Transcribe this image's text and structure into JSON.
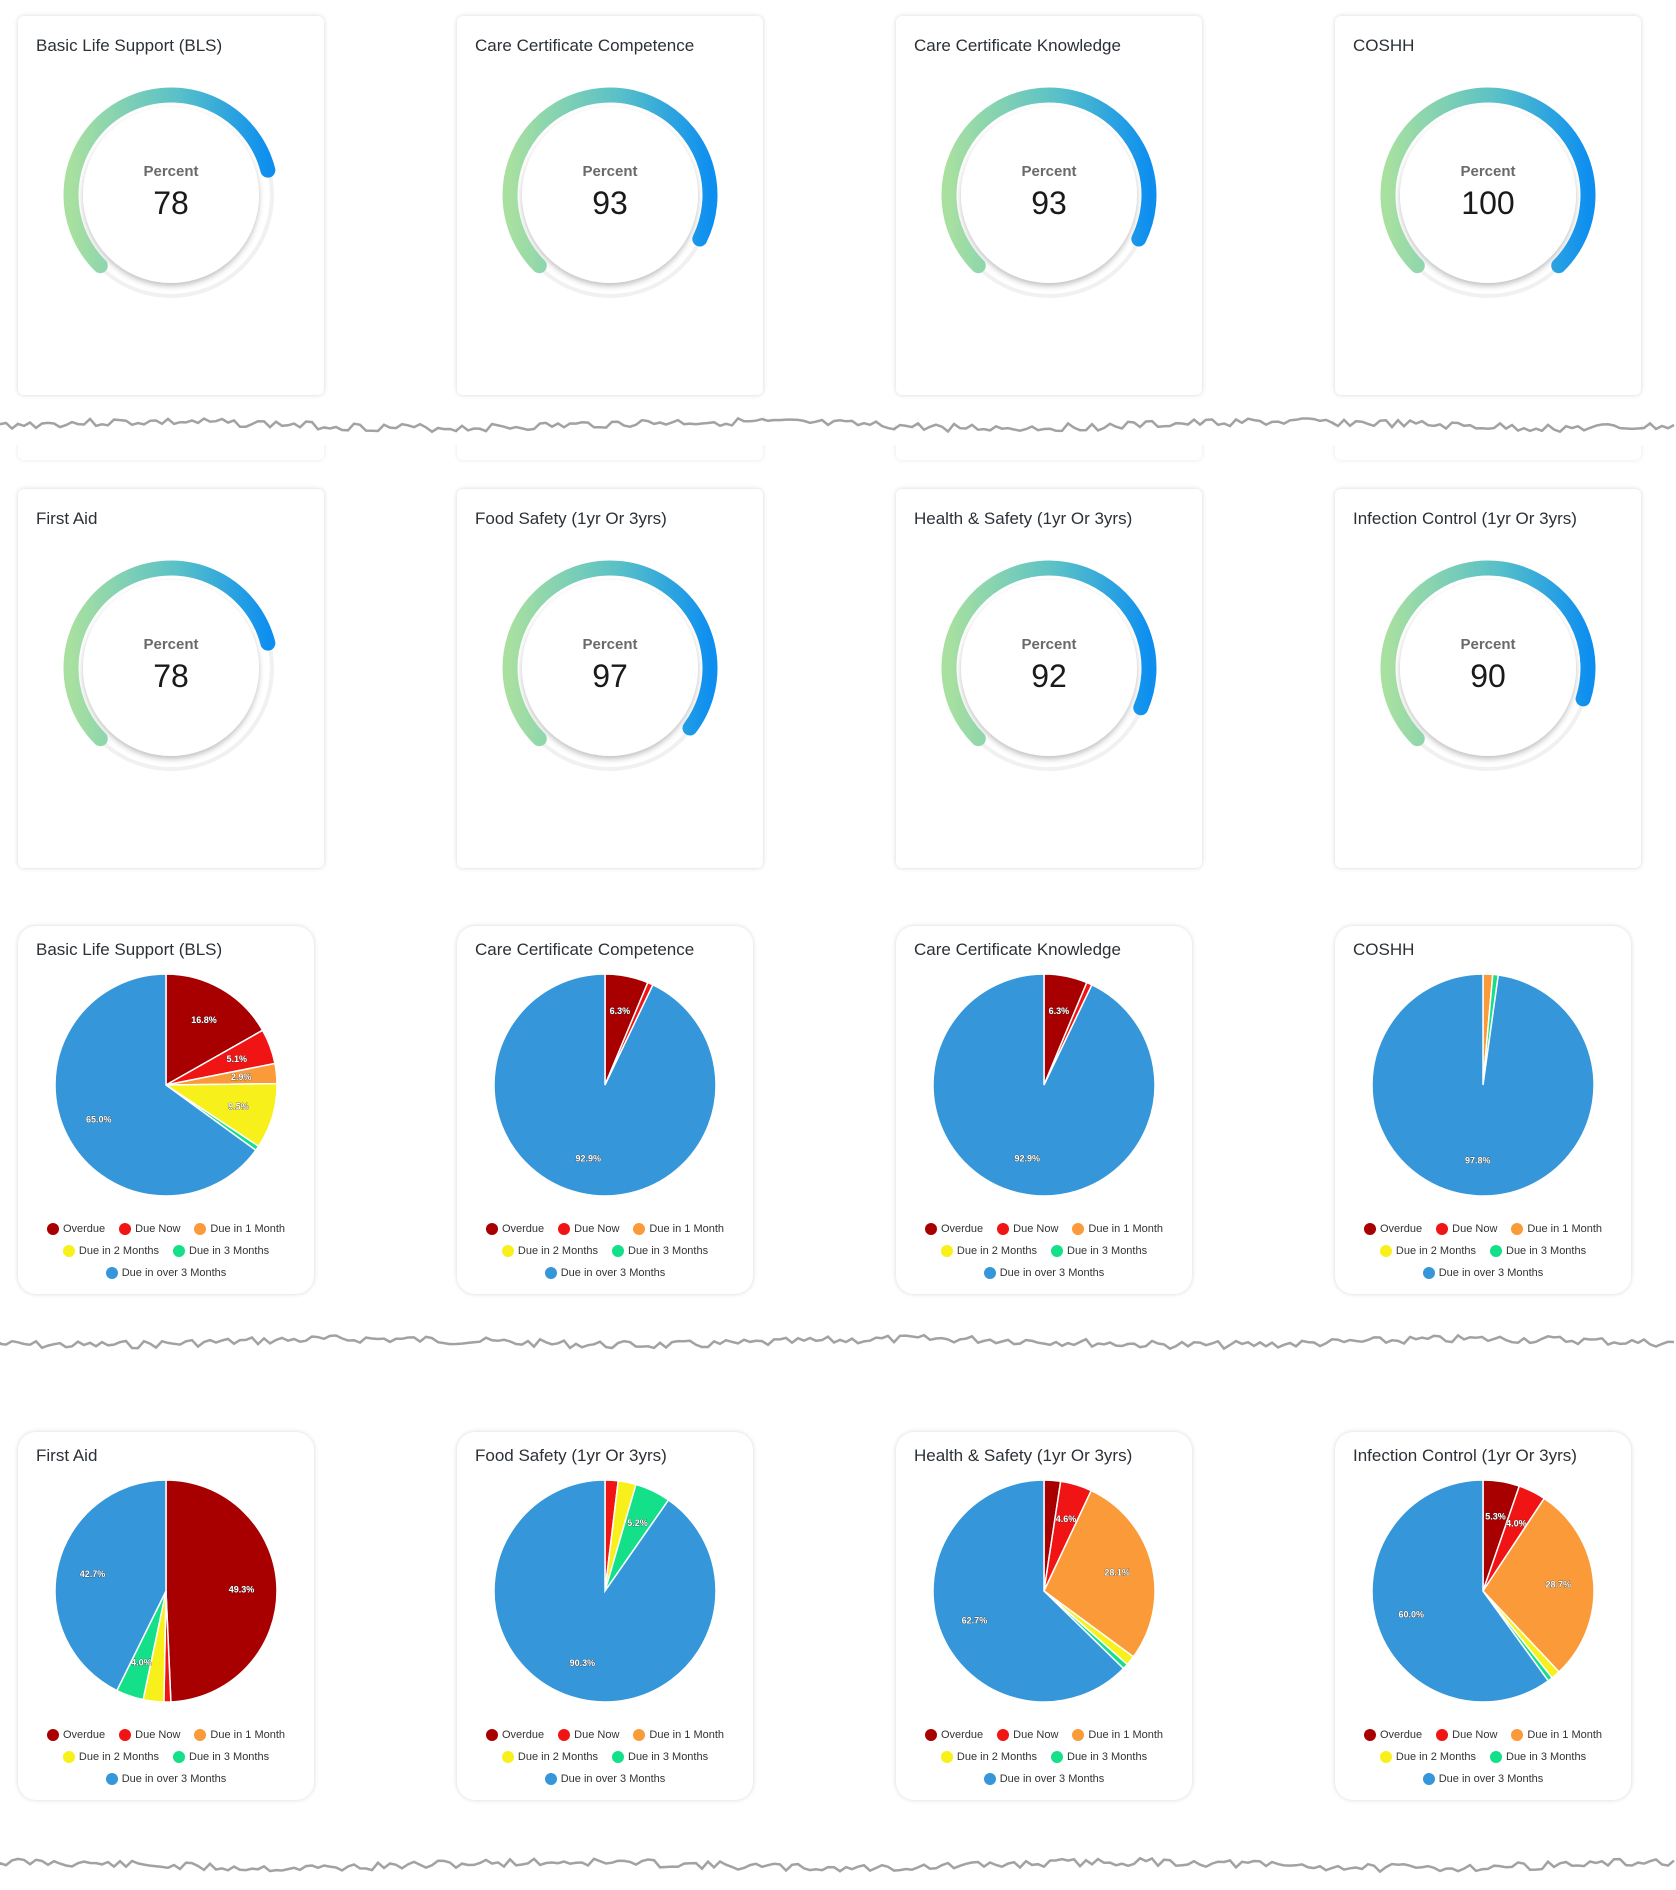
{
  "gauges": [
    {
      "title": "Basic Life Support (BLS)",
      "label": "Percent",
      "value": 78
    },
    {
      "title": "Care Certificate Competence",
      "label": "Percent",
      "value": 93
    },
    {
      "title": "Care Certificate Knowledge",
      "label": "Percent",
      "value": 93
    },
    {
      "title": "COSHH",
      "label": "Percent",
      "value": 100
    },
    {
      "title": "First Aid",
      "label": "Percent",
      "value": 78
    },
    {
      "title": "Food Safety (1yr Or 3yrs)",
      "label": "Percent",
      "value": 97
    },
    {
      "title": "Health & Safety (1yr Or 3yrs)",
      "label": "Percent",
      "value": 92
    },
    {
      "title": "Infection Control (1yr Or 3yrs)",
      "label": "Percent",
      "value": 90
    }
  ],
  "legend_categories": [
    "Overdue",
    "Due Now",
    "Due in 1 Month",
    "Due in 2 Months",
    "Due in 3 Months",
    "Due in over 3 Months"
  ],
  "colors": {
    "Overdue": "#a80000",
    "Due Now": "#f01414",
    "Due in 1 Month": "#fa9a38",
    "Due in 2 Months": "#f8f01a",
    "Due in 3 Months": "#14e08a",
    "Due in over 3 Months": "#3596da",
    "gauge_start": "#a8e0a0",
    "gauge_end": "#0e8ff0"
  },
  "chart_data": [
    {
      "type": "pie",
      "title": "Basic Life Support (BLS)",
      "categories": [
        "Overdue",
        "Due Now",
        "Due in 1 Month",
        "Due in 2 Months",
        "Due in 3 Months",
        "Due in over 3 Months"
      ],
      "values": [
        16.8,
        5.1,
        2.9,
        9.5,
        0.7,
        65.0
      ],
      "labels": [
        "16.8%",
        "5.1%",
        "2.9%",
        "9.5%",
        "",
        "65.0%"
      ]
    },
    {
      "type": "pie",
      "title": "Care Certificate Competence",
      "categories": [
        "Overdue",
        "Due Now",
        "Due in 1 Month",
        "Due in 2 Months",
        "Due in 3 Months",
        "Due in over 3 Months"
      ],
      "values": [
        6.3,
        0.8,
        0,
        0,
        0,
        92.9
      ],
      "labels": [
        "6.3%",
        "",
        "",
        "",
        "",
        "92.9%"
      ]
    },
    {
      "type": "pie",
      "title": "Care Certificate Knowledge",
      "categories": [
        "Overdue",
        "Due Now",
        "Due in 1 Month",
        "Due in 2 Months",
        "Due in 3 Months",
        "Due in over 3 Months"
      ],
      "values": [
        6.3,
        0.8,
        0,
        0,
        0,
        92.9
      ],
      "labels": [
        "6.3%",
        "",
        "",
        "",
        "",
        "92.9%"
      ]
    },
    {
      "type": "pie",
      "title": "COSHH",
      "categories": [
        "Overdue",
        "Due Now",
        "Due in 1 Month",
        "Due in 2 Months",
        "Due in 3 Months",
        "Due in over 3 Months"
      ],
      "values": [
        0,
        0,
        1.4,
        0,
        0.8,
        97.8
      ],
      "labels": [
        "",
        "",
        "",
        "",
        "",
        "97.8%"
      ]
    },
    {
      "type": "pie",
      "title": "First Aid",
      "categories": [
        "Overdue",
        "Due Now",
        "Due in 1 Month",
        "Due in 2 Months",
        "Due in 3 Months",
        "Due in over 3 Months"
      ],
      "values": [
        49.3,
        1.0,
        0,
        3.0,
        4.0,
        42.7
      ],
      "labels": [
        "49.3%",
        "",
        "",
        "",
        "4.0%",
        "42.7%"
      ]
    },
    {
      "type": "pie",
      "title": "Food Safety (1yr Or 3yrs)",
      "categories": [
        "Overdue",
        "Due Now",
        "Due in 1 Month",
        "Due in 2 Months",
        "Due in 3 Months",
        "Due in over 3 Months"
      ],
      "values": [
        0,
        1.9,
        0,
        2.6,
        5.2,
        90.3
      ],
      "labels": [
        "",
        "",
        "",
        "",
        "5.2%",
        "90.3%"
      ]
    },
    {
      "type": "pie",
      "title": "Health & Safety (1yr Or 3yrs)",
      "categories": [
        "Overdue",
        "Due Now",
        "Due in 1 Month",
        "Due in 2 Months",
        "Due in 3 Months",
        "Due in over 3 Months"
      ],
      "values": [
        2.4,
        4.6,
        28.1,
        1.4,
        0.8,
        62.7
      ],
      "labels": [
        "",
        "4.6%",
        "28.1%",
        "",
        "",
        "62.7%"
      ]
    },
    {
      "type": "pie",
      "title": "Infection Control (1yr Or 3yrs)",
      "categories": [
        "Overdue",
        "Due Now",
        "Due in 1 Month",
        "Due in 2 Months",
        "Due in 3 Months",
        "Due in over 3 Months"
      ],
      "values": [
        5.3,
        4.0,
        28.7,
        1.3,
        0.7,
        60.0
      ],
      "labels": [
        "5.3%",
        "4.0%",
        "28.7%",
        "",
        "",
        "60.0%"
      ]
    }
  ]
}
